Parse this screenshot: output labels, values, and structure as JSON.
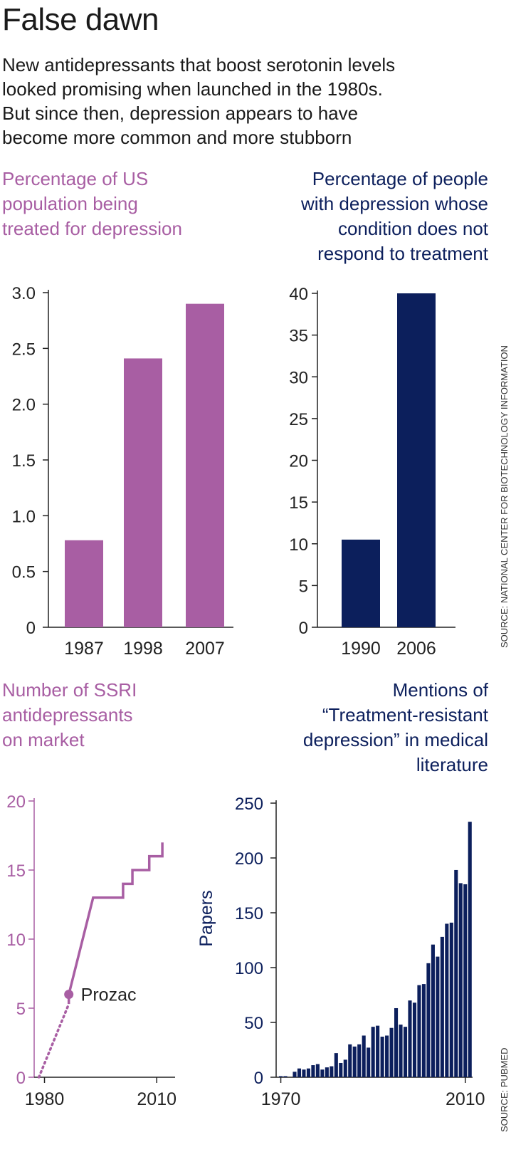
{
  "headline": "False dawn",
  "standfirst": [
    "New antidepressants that boost serotonin levels",
    "looked promising when launched in the 1980s.",
    "But since then, depression appears to have",
    "become more common and more stubborn"
  ],
  "colors": {
    "purple": "#a85ea3",
    "navy": "#0c1f5c",
    "axis": "#222222"
  },
  "sources": {
    "top": "SOURCE: NATIONAL CENTER FOR BIOTECHNOLOGY INFORMATION",
    "bottom": "SOURCE: PUBMED"
  },
  "chart_data": [
    {
      "id": "treated",
      "type": "bar",
      "title_lines": [
        "Percentage of US",
        "population being",
        "treated for depression"
      ],
      "categories": [
        "1987",
        "1998",
        "2007"
      ],
      "values": [
        0.78,
        2.41,
        2.9
      ],
      "ylim": [
        0,
        3.0
      ],
      "yticks": [
        0,
        0.5,
        1.0,
        1.5,
        2.0,
        2.5,
        3.0
      ],
      "ytick_labels": [
        "0",
        "0.5",
        "1.0",
        "1.5",
        "2.0",
        "2.5",
        "3.0"
      ],
      "xlabel": "",
      "ylabel": ""
    },
    {
      "id": "resistant",
      "type": "bar",
      "title_lines": [
        "Percentage of people",
        "with depression whose",
        "condition does not",
        "respond to treatment"
      ],
      "categories": [
        "1990",
        "2006"
      ],
      "values": [
        10.5,
        40
      ],
      "ylim": [
        0,
        40
      ],
      "yticks": [
        0,
        5,
        10,
        15,
        20,
        25,
        30,
        35,
        40
      ],
      "ytick_labels": [
        "0",
        "5",
        "10",
        "15",
        "20",
        "25",
        "30",
        "35",
        "40"
      ],
      "xlabel": "",
      "ylabel": ""
    },
    {
      "id": "ssri",
      "type": "line",
      "title_lines": [
        "Number of SSRI",
        "antidepressants",
        "on market"
      ],
      "xlim": [
        1978,
        2013
      ],
      "ylim": [
        0,
        20
      ],
      "yticks": [
        0,
        5,
        10,
        15,
        20
      ],
      "ytick_labels": [
        "0",
        "5",
        "10",
        "15",
        "20"
      ],
      "xtick_labels": [
        "1980",
        "2010"
      ],
      "xtick_values": [
        1980,
        2010
      ],
      "dotted_points": [
        [
          1978.5,
          0
        ],
        [
          1986.5,
          5.3
        ]
      ],
      "points": [
        [
          1986.5,
          5.3
        ],
        [
          1986.5,
          6
        ],
        [
          1993,
          13
        ],
        [
          2001,
          13
        ],
        [
          2001,
          14
        ],
        [
          2003.5,
          14
        ],
        [
          2003.5,
          15
        ],
        [
          2008,
          15
        ],
        [
          2008,
          16
        ],
        [
          2011.5,
          16
        ],
        [
          2011.5,
          17
        ]
      ],
      "annotation": {
        "label": "Prozac",
        "x": 1986.5,
        "y": 6
      },
      "xlabel": "",
      "ylabel": ""
    },
    {
      "id": "mentions",
      "type": "bar",
      "title_lines": [
        "Mentions of",
        "“Treatment-resistant",
        "depression” in medical",
        "literature"
      ],
      "x_start": 1970,
      "values": [
        1,
        1,
        0,
        5,
        8,
        7,
        8,
        11,
        12,
        7,
        9,
        10,
        22,
        13,
        16,
        30,
        28,
        30,
        38,
        27,
        46,
        47,
        37,
        38,
        45,
        63,
        48,
        46,
        70,
        68,
        84,
        85,
        104,
        121,
        110,
        128,
        140,
        141,
        189,
        177,
        176,
        233
      ],
      "ylim": [
        0,
        250
      ],
      "yticks": [
        0,
        50,
        100,
        150,
        200,
        250
      ],
      "ytick_labels": [
        "0",
        "50",
        "100",
        "150",
        "200",
        "250"
      ],
      "xtick_labels": [
        "1970",
        "2010"
      ],
      "xtick_values": [
        1970,
        2010
      ],
      "xlabel": "",
      "ylabel": "Papers"
    }
  ]
}
